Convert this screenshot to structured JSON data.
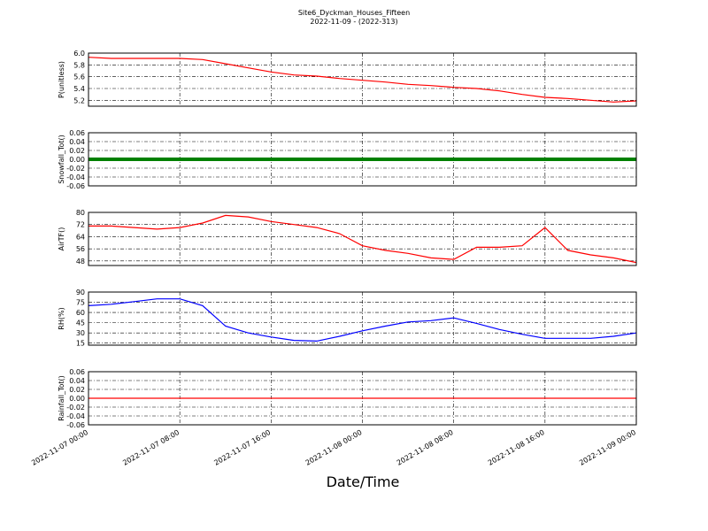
{
  "title": "Site6_Dyckman_Houses_Fifteen",
  "subtitle": "2022-11-09 - (2022-313)",
  "xlabel": "Date/Time",
  "chart_data": [
    {
      "type": "line",
      "ylabel": "P(unitless)",
      "color": "#ff0000",
      "x": [
        "2022-11-07 00:00",
        "2022-11-07 02:00",
        "2022-11-07 04:00",
        "2022-11-07 06:00",
        "2022-11-07 08:00",
        "2022-11-07 10:00",
        "2022-11-07 12:00",
        "2022-11-07 14:00",
        "2022-11-07 16:00",
        "2022-11-07 18:00",
        "2022-11-07 20:00",
        "2022-11-07 22:00",
        "2022-11-08 00:00",
        "2022-11-08 02:00",
        "2022-11-08 04:00",
        "2022-11-08 06:00",
        "2022-11-08 08:00",
        "2022-11-08 10:00",
        "2022-11-08 12:00",
        "2022-11-08 14:00",
        "2022-11-08 16:00",
        "2022-11-08 18:00",
        "2022-11-08 20:00",
        "2022-11-08 22:00",
        "2022-11-09 00:00"
      ],
      "values": [
        5.93,
        5.91,
        5.91,
        5.91,
        5.91,
        5.89,
        5.82,
        5.75,
        5.68,
        5.63,
        5.61,
        5.57,
        5.54,
        5.51,
        5.47,
        5.45,
        5.42,
        5.4,
        5.36,
        5.3,
        5.25,
        5.23,
        5.2,
        5.17,
        5.19
      ],
      "ylim": [
        5.1,
        6.0
      ],
      "yticks": [
        5.2,
        5.4,
        5.6,
        5.8,
        {
          "value": 6,
          "label": "6.0"
        }
      ]
    },
    {
      "type": "line",
      "ylabel": "Snowfall_Tot()",
      "color": "#008000",
      "markers": true,
      "x": [
        "2022-11-07 00:00",
        "2022-11-07 02:00",
        "2022-11-07 04:00",
        "2022-11-07 06:00",
        "2022-11-07 08:00",
        "2022-11-07 10:00",
        "2022-11-07 12:00",
        "2022-11-07 14:00",
        "2022-11-07 16:00",
        "2022-11-07 18:00",
        "2022-11-07 20:00",
        "2022-11-07 22:00",
        "2022-11-08 00:00",
        "2022-11-08 02:00",
        "2022-11-08 04:00",
        "2022-11-08 06:00",
        "2022-11-08 08:00",
        "2022-11-08 10:00",
        "2022-11-08 12:00",
        "2022-11-08 14:00",
        "2022-11-08 16:00",
        "2022-11-08 18:00",
        "2022-11-08 20:00",
        "2022-11-08 22:00",
        "2022-11-09 00:00"
      ],
      "values": [
        0,
        0,
        0,
        0,
        0,
        0,
        0,
        0,
        0,
        0,
        0,
        0,
        0,
        0,
        0,
        0,
        0,
        0,
        0,
        0,
        0,
        0,
        0,
        0,
        0
      ],
      "ylim": [
        -0.06,
        0.06
      ],
      "yticks": [
        -0.06,
        -0.04,
        -0.02,
        {
          "value": 0,
          "label": "0.00"
        },
        0.02,
        0.04,
        0.06
      ]
    },
    {
      "type": "line",
      "ylabel": "AirTF()",
      "color": "#ff0000",
      "x": [
        "2022-11-07 00:00",
        "2022-11-07 02:00",
        "2022-11-07 04:00",
        "2022-11-07 06:00",
        "2022-11-07 08:00",
        "2022-11-07 10:00",
        "2022-11-07 12:00",
        "2022-11-07 14:00",
        "2022-11-07 16:00",
        "2022-11-07 18:00",
        "2022-11-07 20:00",
        "2022-11-07 22:00",
        "2022-11-08 00:00",
        "2022-11-08 02:00",
        "2022-11-08 04:00",
        "2022-11-08 06:00",
        "2022-11-08 08:00",
        "2022-11-08 10:00",
        "2022-11-08 12:00",
        "2022-11-08 14:00",
        "2022-11-08 16:00",
        "2022-11-08 18:00",
        "2022-11-08 20:00",
        "2022-11-08 22:00",
        "2022-11-09 00:00"
      ],
      "values": [
        71,
        71,
        70,
        69,
        70,
        73,
        78,
        77,
        74,
        72,
        70,
        66,
        58,
        55,
        53,
        50,
        49,
        57,
        57,
        58,
        70,
        55,
        52,
        50,
        47
      ],
      "ylim": [
        45,
        80
      ],
      "yticks": [
        48,
        56,
        64,
        72,
        80
      ]
    },
    {
      "type": "line",
      "ylabel": "RH(%)",
      "color": "#0000ff",
      "x": [
        "2022-11-07 00:00",
        "2022-11-07 02:00",
        "2022-11-07 04:00",
        "2022-11-07 06:00",
        "2022-11-07 08:00",
        "2022-11-07 10:00",
        "2022-11-07 12:00",
        "2022-11-07 14:00",
        "2022-11-07 16:00",
        "2022-11-07 18:00",
        "2022-11-07 20:00",
        "2022-11-07 22:00",
        "2022-11-08 00:00",
        "2022-11-08 02:00",
        "2022-11-08 04:00",
        "2022-11-08 06:00",
        "2022-11-08 08:00",
        "2022-11-08 10:00",
        "2022-11-08 12:00",
        "2022-11-08 14:00",
        "2022-11-08 16:00",
        "2022-11-08 18:00",
        "2022-11-08 20:00",
        "2022-11-08 22:00",
        "2022-11-09 00:00"
      ],
      "values": [
        70,
        72,
        76,
        80,
        80,
        70,
        40,
        30,
        24,
        19,
        18,
        25,
        33,
        40,
        46,
        48,
        52,
        44,
        35,
        28,
        22,
        22,
        22,
        25,
        30
      ],
      "ylim": [
        12,
        90
      ],
      "yticks": [
        15,
        30,
        45,
        60,
        75,
        90
      ]
    },
    {
      "type": "line",
      "ylabel": "Rainfall_Tot()",
      "color": "#ff0000",
      "x": [
        "2022-11-07 00:00",
        "2022-11-07 02:00",
        "2022-11-07 04:00",
        "2022-11-07 06:00",
        "2022-11-07 08:00",
        "2022-11-07 10:00",
        "2022-11-07 12:00",
        "2022-11-07 14:00",
        "2022-11-07 16:00",
        "2022-11-07 18:00",
        "2022-11-07 20:00",
        "2022-11-07 22:00",
        "2022-11-08 00:00",
        "2022-11-08 02:00",
        "2022-11-08 04:00",
        "2022-11-08 06:00",
        "2022-11-08 08:00",
        "2022-11-08 10:00",
        "2022-11-08 12:00",
        "2022-11-08 14:00",
        "2022-11-08 16:00",
        "2022-11-08 18:00",
        "2022-11-08 20:00",
        "2022-11-08 22:00",
        "2022-11-09 00:00"
      ],
      "values": [
        0,
        0,
        0,
        0,
        0,
        0,
        0,
        0,
        0,
        0,
        0,
        0,
        0,
        0,
        0,
        0,
        0,
        0,
        0,
        0,
        0,
        0,
        0,
        0,
        0
      ],
      "ylim": [
        -0.06,
        0.06
      ],
      "yticks": [
        -0.06,
        -0.04,
        -0.02,
        {
          "value": 0,
          "label": "0.00"
        },
        0.02,
        0.04,
        0.06
      ],
      "xlim": [
        "2022-11-07 00:00",
        "2022-11-09 00:00"
      ],
      "xticks": [
        "2022-11-07 00:00",
        "2022-11-07 08:00",
        "2022-11-07 16:00",
        "2022-11-08 00:00",
        "2022-11-08 08:00",
        "2022-11-08 16:00",
        "2022-11-09 00:00"
      ]
    }
  ]
}
